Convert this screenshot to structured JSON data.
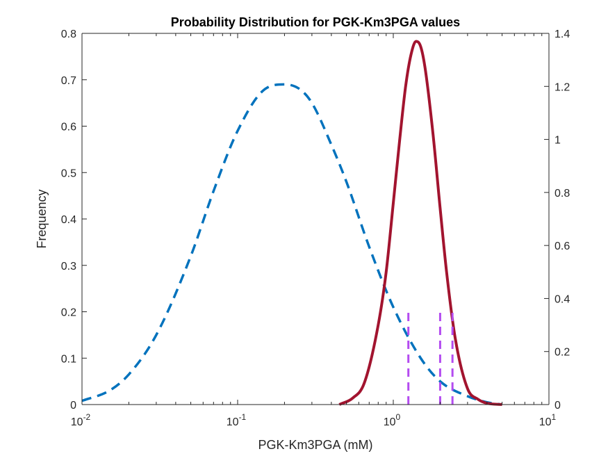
{
  "chart_data": {
    "type": "line",
    "title": "Probability Distribution for PGK-Km3PGA values",
    "xlabel": "PGK-Km3PGA (mM)",
    "ylabel": "Frequency",
    "x_scale": "log",
    "xlim": [
      0.01,
      10
    ],
    "ylim_left": [
      0,
      0.8
    ],
    "ylim_right": [
      0,
      1.4
    ],
    "x_ticks": [
      {
        "value": 0.01,
        "base": "10",
        "exp": "-2"
      },
      {
        "value": 0.1,
        "base": "10",
        "exp": "-1"
      },
      {
        "value": 1,
        "base": "10",
        "exp": "0"
      },
      {
        "value": 10,
        "base": "10",
        "exp": "1"
      }
    ],
    "y_ticks_left": [
      "0",
      "0.1",
      "0.2",
      "0.3",
      "0.4",
      "0.5",
      "0.6",
      "0.7",
      "0.8"
    ],
    "y_ticks_right": [
      "0",
      "0.2",
      "0.4",
      "0.6",
      "0.8",
      "1",
      "1.2",
      "1.4"
    ],
    "grid": false,
    "colors": {
      "prior": "#0072BD",
      "posterior": "#A2142F",
      "markers": "#B44CF0",
      "axis": "#262626"
    },
    "series": [
      {
        "style": "dashed",
        "axis": "left",
        "color": "#0072BD",
        "x": [
          0.01,
          0.015,
          0.02,
          0.03,
          0.05,
          0.07,
          0.1,
          0.15,
          0.2,
          0.25,
          0.3,
          0.4,
          0.5,
          0.7,
          1.0,
          1.5,
          2.0,
          3.0,
          4.0,
          5.0
        ],
        "y": [
          0.008,
          0.03,
          0.065,
          0.15,
          0.32,
          0.46,
          0.59,
          0.68,
          0.69,
          0.68,
          0.65,
          0.56,
          0.48,
          0.34,
          0.21,
          0.1,
          0.05,
          0.018,
          0.005,
          0.0
        ]
      },
      {
        "style": "solid",
        "axis": "right",
        "color": "#A2142F",
        "x": [
          0.45,
          0.55,
          0.65,
          0.8,
          0.9,
          1.0,
          1.1,
          1.2,
          1.3,
          1.4,
          1.5,
          1.6,
          1.8,
          2.0,
          2.2,
          2.5,
          3.0,
          3.5,
          4.0,
          5.0
        ],
        "y": [
          0.0,
          0.025,
          0.08,
          0.3,
          0.5,
          0.76,
          1.0,
          1.2,
          1.32,
          1.37,
          1.35,
          1.27,
          1.02,
          0.74,
          0.5,
          0.25,
          0.06,
          0.02,
          0.005,
          0.0
        ]
      }
    ],
    "vertical_markers": {
      "style": "dashed",
      "color": "#B44CF0",
      "axis": "left",
      "x": [
        1.25,
        2.0,
        2.4
      ],
      "y_top": 0.2
    }
  }
}
